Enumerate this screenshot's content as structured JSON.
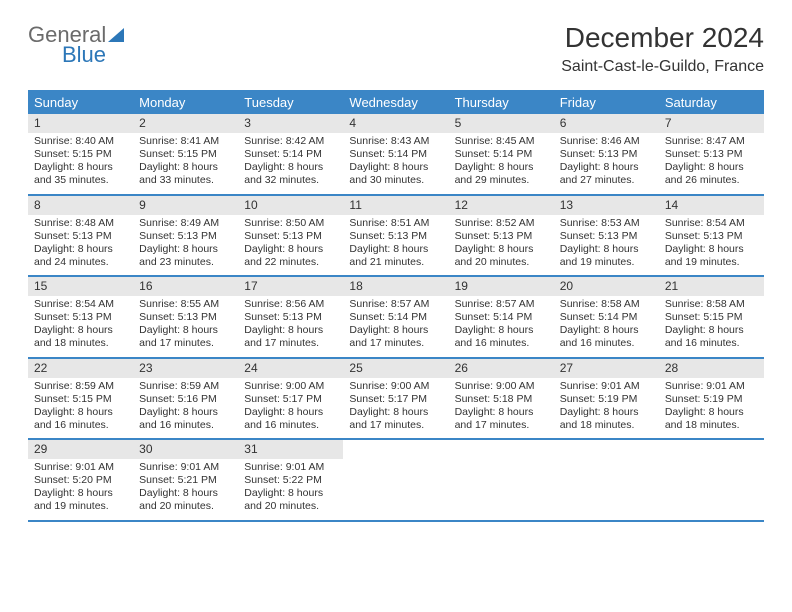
{
  "logo": {
    "text1": "General",
    "text2": "Blue"
  },
  "title": "December 2024",
  "subtitle": "Saint-Cast-le-Guildo, France",
  "colors": {
    "header_bg": "#3b86c6",
    "header_text": "#ffffff",
    "daynum_bg": "#e7e7e7",
    "rule": "#3b86c6",
    "logo_gray": "#6b6b6b",
    "logo_blue": "#2c77b8",
    "text": "#333333",
    "background": "#ffffff"
  },
  "day_headers": [
    "Sunday",
    "Monday",
    "Tuesday",
    "Wednesday",
    "Thursday",
    "Friday",
    "Saturday"
  ],
  "weeks": [
    [
      {
        "day": "1",
        "sunrise": "Sunrise: 8:40 AM",
        "sunset": "Sunset: 5:15 PM",
        "daylight": "Daylight: 8 hours and 35 minutes."
      },
      {
        "day": "2",
        "sunrise": "Sunrise: 8:41 AM",
        "sunset": "Sunset: 5:15 PM",
        "daylight": "Daylight: 8 hours and 33 minutes."
      },
      {
        "day": "3",
        "sunrise": "Sunrise: 8:42 AM",
        "sunset": "Sunset: 5:14 PM",
        "daylight": "Daylight: 8 hours and 32 minutes."
      },
      {
        "day": "4",
        "sunrise": "Sunrise: 8:43 AM",
        "sunset": "Sunset: 5:14 PM",
        "daylight": "Daylight: 8 hours and 30 minutes."
      },
      {
        "day": "5",
        "sunrise": "Sunrise: 8:45 AM",
        "sunset": "Sunset: 5:14 PM",
        "daylight": "Daylight: 8 hours and 29 minutes."
      },
      {
        "day": "6",
        "sunrise": "Sunrise: 8:46 AM",
        "sunset": "Sunset: 5:13 PM",
        "daylight": "Daylight: 8 hours and 27 minutes."
      },
      {
        "day": "7",
        "sunrise": "Sunrise: 8:47 AM",
        "sunset": "Sunset: 5:13 PM",
        "daylight": "Daylight: 8 hours and 26 minutes."
      }
    ],
    [
      {
        "day": "8",
        "sunrise": "Sunrise: 8:48 AM",
        "sunset": "Sunset: 5:13 PM",
        "daylight": "Daylight: 8 hours and 24 minutes."
      },
      {
        "day": "9",
        "sunrise": "Sunrise: 8:49 AM",
        "sunset": "Sunset: 5:13 PM",
        "daylight": "Daylight: 8 hours and 23 minutes."
      },
      {
        "day": "10",
        "sunrise": "Sunrise: 8:50 AM",
        "sunset": "Sunset: 5:13 PM",
        "daylight": "Daylight: 8 hours and 22 minutes."
      },
      {
        "day": "11",
        "sunrise": "Sunrise: 8:51 AM",
        "sunset": "Sunset: 5:13 PM",
        "daylight": "Daylight: 8 hours and 21 minutes."
      },
      {
        "day": "12",
        "sunrise": "Sunrise: 8:52 AM",
        "sunset": "Sunset: 5:13 PM",
        "daylight": "Daylight: 8 hours and 20 minutes."
      },
      {
        "day": "13",
        "sunrise": "Sunrise: 8:53 AM",
        "sunset": "Sunset: 5:13 PM",
        "daylight": "Daylight: 8 hours and 19 minutes."
      },
      {
        "day": "14",
        "sunrise": "Sunrise: 8:54 AM",
        "sunset": "Sunset: 5:13 PM",
        "daylight": "Daylight: 8 hours and 19 minutes."
      }
    ],
    [
      {
        "day": "15",
        "sunrise": "Sunrise: 8:54 AM",
        "sunset": "Sunset: 5:13 PM",
        "daylight": "Daylight: 8 hours and 18 minutes."
      },
      {
        "day": "16",
        "sunrise": "Sunrise: 8:55 AM",
        "sunset": "Sunset: 5:13 PM",
        "daylight": "Daylight: 8 hours and 17 minutes."
      },
      {
        "day": "17",
        "sunrise": "Sunrise: 8:56 AM",
        "sunset": "Sunset: 5:13 PM",
        "daylight": "Daylight: 8 hours and 17 minutes."
      },
      {
        "day": "18",
        "sunrise": "Sunrise: 8:57 AM",
        "sunset": "Sunset: 5:14 PM",
        "daylight": "Daylight: 8 hours and 17 minutes."
      },
      {
        "day": "19",
        "sunrise": "Sunrise: 8:57 AM",
        "sunset": "Sunset: 5:14 PM",
        "daylight": "Daylight: 8 hours and 16 minutes."
      },
      {
        "day": "20",
        "sunrise": "Sunrise: 8:58 AM",
        "sunset": "Sunset: 5:14 PM",
        "daylight": "Daylight: 8 hours and 16 minutes."
      },
      {
        "day": "21",
        "sunrise": "Sunrise: 8:58 AM",
        "sunset": "Sunset: 5:15 PM",
        "daylight": "Daylight: 8 hours and 16 minutes."
      }
    ],
    [
      {
        "day": "22",
        "sunrise": "Sunrise: 8:59 AM",
        "sunset": "Sunset: 5:15 PM",
        "daylight": "Daylight: 8 hours and 16 minutes."
      },
      {
        "day": "23",
        "sunrise": "Sunrise: 8:59 AM",
        "sunset": "Sunset: 5:16 PM",
        "daylight": "Daylight: 8 hours and 16 minutes."
      },
      {
        "day": "24",
        "sunrise": "Sunrise: 9:00 AM",
        "sunset": "Sunset: 5:17 PM",
        "daylight": "Daylight: 8 hours and 16 minutes."
      },
      {
        "day": "25",
        "sunrise": "Sunrise: 9:00 AM",
        "sunset": "Sunset: 5:17 PM",
        "daylight": "Daylight: 8 hours and 17 minutes."
      },
      {
        "day": "26",
        "sunrise": "Sunrise: 9:00 AM",
        "sunset": "Sunset: 5:18 PM",
        "daylight": "Daylight: 8 hours and 17 minutes."
      },
      {
        "day": "27",
        "sunrise": "Sunrise: 9:01 AM",
        "sunset": "Sunset: 5:19 PM",
        "daylight": "Daylight: 8 hours and 18 minutes."
      },
      {
        "day": "28",
        "sunrise": "Sunrise: 9:01 AM",
        "sunset": "Sunset: 5:19 PM",
        "daylight": "Daylight: 8 hours and 18 minutes."
      }
    ],
    [
      {
        "day": "29",
        "sunrise": "Sunrise: 9:01 AM",
        "sunset": "Sunset: 5:20 PM",
        "daylight": "Daylight: 8 hours and 19 minutes."
      },
      {
        "day": "30",
        "sunrise": "Sunrise: 9:01 AM",
        "sunset": "Sunset: 5:21 PM",
        "daylight": "Daylight: 8 hours and 20 minutes."
      },
      {
        "day": "31",
        "sunrise": "Sunrise: 9:01 AM",
        "sunset": "Sunset: 5:22 PM",
        "daylight": "Daylight: 8 hours and 20 minutes."
      },
      null,
      null,
      null,
      null
    ]
  ]
}
